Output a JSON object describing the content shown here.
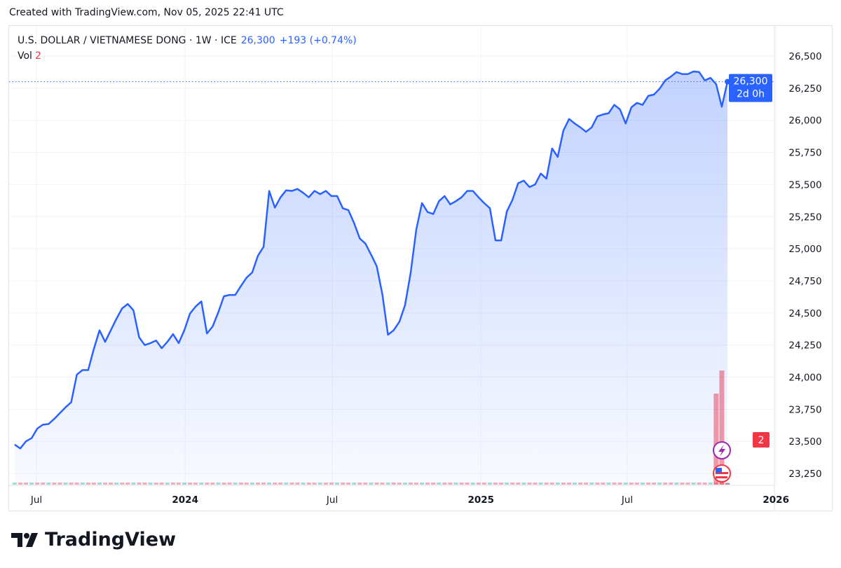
{
  "header": {
    "credit": "Created with TradingView.com, Nov 05, 2025 22:41 UTC"
  },
  "legend": {
    "symbol": "U.S. DOLLAR / VIETNAMESE DONG · 1W · ICE",
    "last": "26,300",
    "change": "+193 (+0.74%)",
    "vol_label": "Vol",
    "vol_value": "2"
  },
  "price_label": {
    "value": "26,300",
    "countdown": "2d 0h"
  },
  "vol_axis_label": "2",
  "brand": "TradingView",
  "colors": {
    "line": "#2962ff",
    "area": "#2962ff",
    "volume_down": "#f23645",
    "volume_up": "#22ab94",
    "grid": "#f0f3fa"
  },
  "icons": [
    "lightning-event-icon",
    "us-flag-event-icon",
    "tradingview-logo-icon"
  ],
  "chart_data": {
    "type": "area",
    "title": "U.S. DOLLAR / VIETNAMESE DONG · 1W · ICE",
    "xlabel": "",
    "ylabel": "",
    "ylim": [
      23150,
      26650
    ],
    "y_ticks": [
      23250,
      23500,
      23750,
      24000,
      24250,
      24500,
      24750,
      25000,
      25250,
      25500,
      25750,
      26000,
      26250,
      26500
    ],
    "y_tick_labels": [
      "23,250",
      "23,500",
      "23,750",
      "24,000",
      "24,250",
      "24,500",
      "24,750",
      "25,000",
      "25,250",
      "25,500",
      "25,750",
      "26,000",
      "26,250",
      "26,500"
    ],
    "x_ticks": [
      {
        "date": "2023-07-01",
        "label": "Jul",
        "bold": false
      },
      {
        "date": "2024-01-01",
        "label": "2024",
        "bold": true
      },
      {
        "date": "2024-07-01",
        "label": "Jul",
        "bold": false
      },
      {
        "date": "2025-01-01",
        "label": "2025",
        "bold": true
      },
      {
        "date": "2025-07-01",
        "label": "Jul",
        "bold": false
      },
      {
        "date": "2026-01-01",
        "label": "2026",
        "bold": true
      }
    ],
    "grid": true,
    "x": [
      "2023-06-04",
      "2023-06-11",
      "2023-06-18",
      "2023-06-25",
      "2023-07-02",
      "2023-07-09",
      "2023-07-16",
      "2023-07-23",
      "2023-07-30",
      "2023-08-06",
      "2023-08-13",
      "2023-08-20",
      "2023-08-27",
      "2023-09-03",
      "2023-09-10",
      "2023-09-17",
      "2023-09-24",
      "2023-10-01",
      "2023-10-08",
      "2023-10-15",
      "2023-10-22",
      "2023-10-29",
      "2023-11-05",
      "2023-11-12",
      "2023-11-19",
      "2023-11-26",
      "2023-12-03",
      "2023-12-10",
      "2023-12-17",
      "2023-12-24",
      "2023-12-31",
      "2024-01-07",
      "2024-01-14",
      "2024-01-21",
      "2024-01-28",
      "2024-02-04",
      "2024-02-11",
      "2024-02-18",
      "2024-02-25",
      "2024-03-03",
      "2024-03-10",
      "2024-03-17",
      "2024-03-24",
      "2024-03-31",
      "2024-04-07",
      "2024-04-14",
      "2024-04-21",
      "2024-04-28",
      "2024-05-05",
      "2024-05-12",
      "2024-05-19",
      "2024-05-26",
      "2024-06-02",
      "2024-06-09",
      "2024-06-16",
      "2024-06-23",
      "2024-06-30",
      "2024-07-07",
      "2024-07-14",
      "2024-07-21",
      "2024-07-28",
      "2024-08-04",
      "2024-08-11",
      "2024-08-18",
      "2024-08-25",
      "2024-09-01",
      "2024-09-08",
      "2024-09-15",
      "2024-09-22",
      "2024-09-29",
      "2024-10-06",
      "2024-10-13",
      "2024-10-20",
      "2024-10-27",
      "2024-11-03",
      "2024-11-10",
      "2024-11-17",
      "2024-11-24",
      "2024-12-01",
      "2024-12-08",
      "2024-12-15",
      "2024-12-22",
      "2024-12-29",
      "2025-01-05",
      "2025-01-12",
      "2025-01-19",
      "2025-01-26",
      "2025-02-02",
      "2025-02-09",
      "2025-02-16",
      "2025-02-23",
      "2025-03-02",
      "2025-03-09",
      "2025-03-16",
      "2025-03-23",
      "2025-03-30",
      "2025-04-06",
      "2025-04-13",
      "2025-04-20",
      "2025-04-27",
      "2025-05-04",
      "2025-05-11",
      "2025-05-18",
      "2025-05-25",
      "2025-06-01",
      "2025-06-08",
      "2025-06-15",
      "2025-06-22",
      "2025-06-29",
      "2025-07-06",
      "2025-07-13",
      "2025-07-20",
      "2025-07-27",
      "2025-08-03",
      "2025-08-10",
      "2025-08-17",
      "2025-08-24",
      "2025-08-31",
      "2025-09-07",
      "2025-09-14",
      "2025-09-21",
      "2025-09-28",
      "2025-10-05",
      "2025-10-12",
      "2025-10-19",
      "2025-10-26",
      "2025-11-02"
    ],
    "y": [
      23475,
      23445,
      23500,
      23525,
      23600,
      23630,
      23635,
      23675,
      23720,
      23765,
      23805,
      24020,
      24055,
      24055,
      24220,
      24365,
      24275,
      24365,
      24455,
      24535,
      24570,
      24520,
      24310,
      24250,
      24265,
      24285,
      24225,
      24275,
      24335,
      24265,
      24365,
      24495,
      24550,
      24590,
      24340,
      24395,
      24505,
      24630,
      24640,
      24640,
      24710,
      24775,
      24815,
      24945,
      25015,
      25450,
      25320,
      25400,
      25455,
      25450,
      25465,
      25435,
      25400,
      25450,
      25425,
      25450,
      25410,
      25410,
      25315,
      25300,
      25200,
      25080,
      25040,
      24955,
      24865,
      24645,
      24330,
      24365,
      24430,
      24560,
      24810,
      25150,
      25355,
      25285,
      25270,
      25370,
      25410,
      25345,
      25370,
      25400,
      25450,
      25450,
      25400,
      25355,
      25315,
      25065,
      25065,
      25290,
      25380,
      25510,
      25530,
      25480,
      25500,
      25585,
      25545,
      25780,
      25715,
      25920,
      26010,
      25975,
      25945,
      25910,
      25945,
      26030,
      26045,
      26055,
      26120,
      26085,
      25975,
      26100,
      26135,
      26120,
      26190,
      26200,
      26245,
      26310,
      26340,
      26375,
      26360,
      26360,
      26380,
      26375,
      26310,
      26330,
      26280,
      26105,
      26300
    ],
    "volume": {
      "x": [
        "2025-10-19",
        "2025-10-26",
        "2025-11-02"
      ],
      "values": [
        130,
        163,
        2
      ]
    }
  }
}
